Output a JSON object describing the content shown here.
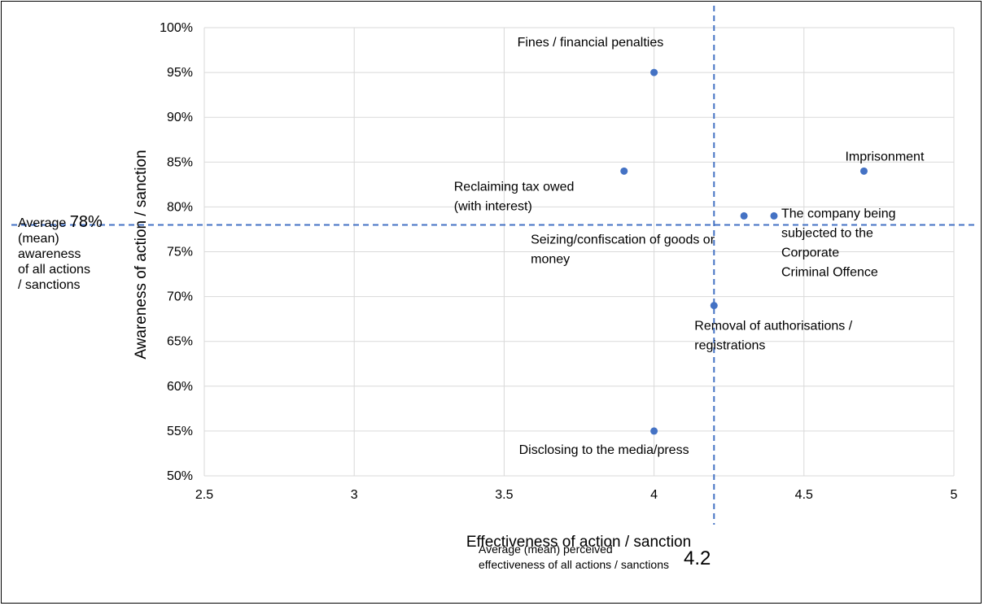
{
  "chart_data": {
    "type": "scatter",
    "xlabel": "Effectiveness of action / sanction",
    "ylabel": "Awareness of action / sanction",
    "xlim": [
      2.5,
      5
    ],
    "ylim": [
      50,
      100
    ],
    "x_ticks": [
      "2.5",
      "3",
      "3.5",
      "4",
      "4.5",
      "5"
    ],
    "y_ticks": [
      "50%",
      "55%",
      "60%",
      "65%",
      "70%",
      "75%",
      "80%",
      "85%",
      "90%",
      "95%",
      "100%"
    ],
    "grid": true,
    "point_color": "#4472C4",
    "reference_line_color": "#4472C4",
    "points": [
      {
        "label": "Fines / financial penalties",
        "x": 4.0,
        "y": 95
      },
      {
        "label": "Reclaiming tax owed (with interest)",
        "x": 3.9,
        "y": 84
      },
      {
        "label": "Imprisonment",
        "x": 4.7,
        "y": 84
      },
      {
        "label": "Seizing/confiscation of goods or money",
        "x": 4.3,
        "y": 79
      },
      {
        "label": "The company being subjected to the Corporate Criminal Offence",
        "x": 4.4,
        "y": 79
      },
      {
        "label": "Removal of authorisations / registrations",
        "x": 4.2,
        "y": 69
      },
      {
        "label": "Disclosing to the media/press",
        "x": 4.0,
        "y": 55
      }
    ],
    "reference_lines": {
      "x_mean": 4.2,
      "y_mean": 78
    }
  },
  "annotations": {
    "awareness_mean": {
      "prefix": "Average",
      "value": "78%",
      "lines": [
        "(mean)",
        "awareness",
        "of all actions",
        "/ sanctions"
      ]
    },
    "effectiveness_mean": {
      "text": "Average (mean) perceived effectiveness of all actions / sanctions",
      "value": "4.2"
    }
  }
}
